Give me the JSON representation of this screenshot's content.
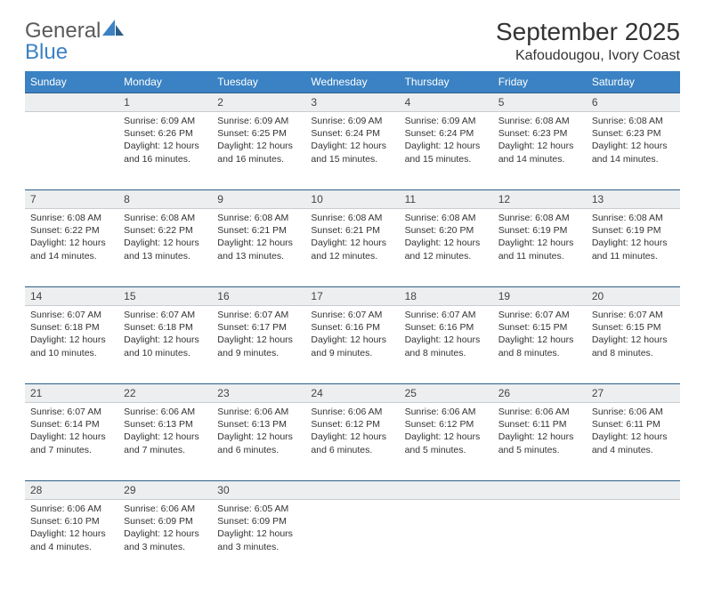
{
  "brand": {
    "name1": "General",
    "name2": "Blue"
  },
  "title": "September 2025",
  "location": "Kafoudougou, Ivory Coast",
  "colors": {
    "header_bg": "#3b82c4",
    "header_text": "#ffffff",
    "daynum_bg": "#eceef0",
    "row_border_top": "#2b5f8a",
    "text": "#333333"
  },
  "weekdays": [
    "Sunday",
    "Monday",
    "Tuesday",
    "Wednesday",
    "Thursday",
    "Friday",
    "Saturday"
  ],
  "weeks": [
    [
      null,
      {
        "n": "1",
        "sunrise": "6:09 AM",
        "sunset": "6:26 PM",
        "daylight": "12 hours and 16 minutes."
      },
      {
        "n": "2",
        "sunrise": "6:09 AM",
        "sunset": "6:25 PM",
        "daylight": "12 hours and 16 minutes."
      },
      {
        "n": "3",
        "sunrise": "6:09 AM",
        "sunset": "6:24 PM",
        "daylight": "12 hours and 15 minutes."
      },
      {
        "n": "4",
        "sunrise": "6:09 AM",
        "sunset": "6:24 PM",
        "daylight": "12 hours and 15 minutes."
      },
      {
        "n": "5",
        "sunrise": "6:08 AM",
        "sunset": "6:23 PM",
        "daylight": "12 hours and 14 minutes."
      },
      {
        "n": "6",
        "sunrise": "6:08 AM",
        "sunset": "6:23 PM",
        "daylight": "12 hours and 14 minutes."
      }
    ],
    [
      {
        "n": "7",
        "sunrise": "6:08 AM",
        "sunset": "6:22 PM",
        "daylight": "12 hours and 14 minutes."
      },
      {
        "n": "8",
        "sunrise": "6:08 AM",
        "sunset": "6:22 PM",
        "daylight": "12 hours and 13 minutes."
      },
      {
        "n": "9",
        "sunrise": "6:08 AM",
        "sunset": "6:21 PM",
        "daylight": "12 hours and 13 minutes."
      },
      {
        "n": "10",
        "sunrise": "6:08 AM",
        "sunset": "6:21 PM",
        "daylight": "12 hours and 12 minutes."
      },
      {
        "n": "11",
        "sunrise": "6:08 AM",
        "sunset": "6:20 PM",
        "daylight": "12 hours and 12 minutes."
      },
      {
        "n": "12",
        "sunrise": "6:08 AM",
        "sunset": "6:19 PM",
        "daylight": "12 hours and 11 minutes."
      },
      {
        "n": "13",
        "sunrise": "6:08 AM",
        "sunset": "6:19 PM",
        "daylight": "12 hours and 11 minutes."
      }
    ],
    [
      {
        "n": "14",
        "sunrise": "6:07 AM",
        "sunset": "6:18 PM",
        "daylight": "12 hours and 10 minutes."
      },
      {
        "n": "15",
        "sunrise": "6:07 AM",
        "sunset": "6:18 PM",
        "daylight": "12 hours and 10 minutes."
      },
      {
        "n": "16",
        "sunrise": "6:07 AM",
        "sunset": "6:17 PM",
        "daylight": "12 hours and 9 minutes."
      },
      {
        "n": "17",
        "sunrise": "6:07 AM",
        "sunset": "6:16 PM",
        "daylight": "12 hours and 9 minutes."
      },
      {
        "n": "18",
        "sunrise": "6:07 AM",
        "sunset": "6:16 PM",
        "daylight": "12 hours and 8 minutes."
      },
      {
        "n": "19",
        "sunrise": "6:07 AM",
        "sunset": "6:15 PM",
        "daylight": "12 hours and 8 minutes."
      },
      {
        "n": "20",
        "sunrise": "6:07 AM",
        "sunset": "6:15 PM",
        "daylight": "12 hours and 8 minutes."
      }
    ],
    [
      {
        "n": "21",
        "sunrise": "6:07 AM",
        "sunset": "6:14 PM",
        "daylight": "12 hours and 7 minutes."
      },
      {
        "n": "22",
        "sunrise": "6:06 AM",
        "sunset": "6:13 PM",
        "daylight": "12 hours and 7 minutes."
      },
      {
        "n": "23",
        "sunrise": "6:06 AM",
        "sunset": "6:13 PM",
        "daylight": "12 hours and 6 minutes."
      },
      {
        "n": "24",
        "sunrise": "6:06 AM",
        "sunset": "6:12 PM",
        "daylight": "12 hours and 6 minutes."
      },
      {
        "n": "25",
        "sunrise": "6:06 AM",
        "sunset": "6:12 PM",
        "daylight": "12 hours and 5 minutes."
      },
      {
        "n": "26",
        "sunrise": "6:06 AM",
        "sunset": "6:11 PM",
        "daylight": "12 hours and 5 minutes."
      },
      {
        "n": "27",
        "sunrise": "6:06 AM",
        "sunset": "6:11 PM",
        "daylight": "12 hours and 4 minutes."
      }
    ],
    [
      {
        "n": "28",
        "sunrise": "6:06 AM",
        "sunset": "6:10 PM",
        "daylight": "12 hours and 4 minutes."
      },
      {
        "n": "29",
        "sunrise": "6:06 AM",
        "sunset": "6:09 PM",
        "daylight": "12 hours and 3 minutes."
      },
      {
        "n": "30",
        "sunrise": "6:05 AM",
        "sunset": "6:09 PM",
        "daylight": "12 hours and 3 minutes."
      },
      null,
      null,
      null,
      null
    ]
  ],
  "labels": {
    "sunrise": "Sunrise:",
    "sunset": "Sunset:",
    "daylight": "Daylight:"
  }
}
